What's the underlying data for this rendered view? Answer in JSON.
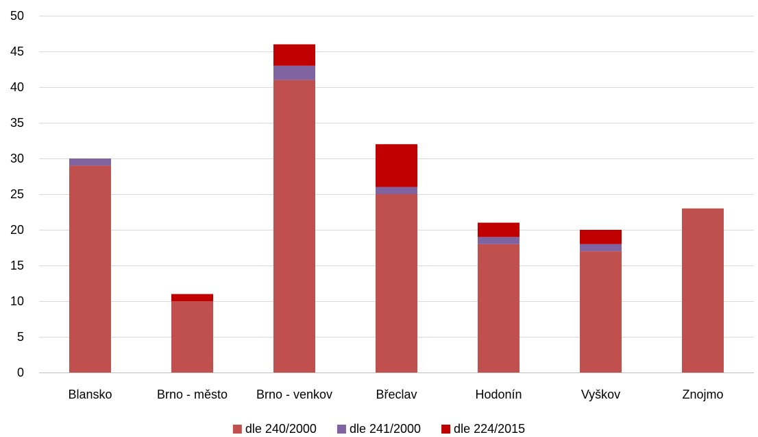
{
  "chart_data": {
    "type": "bar",
    "stacked": true,
    "categories": [
      "Blansko",
      "Brno - město",
      "Brno - venkov",
      "Břeclav",
      "Hodonín",
      "Vyškov",
      "Znojmo"
    ],
    "series": [
      {
        "name": "dle 240/2000",
        "color": "#C0504D",
        "values": [
          29,
          10,
          41,
          25,
          18,
          17,
          23
        ]
      },
      {
        "name": "dle 241/2000",
        "color": "#8064A2",
        "values": [
          1,
          0,
          2,
          1,
          1,
          1,
          0
        ]
      },
      {
        "name": "dle 224/2015",
        "color": "#C00000",
        "values": [
          0,
          1,
          3,
          6,
          2,
          2,
          0
        ]
      }
    ],
    "ylim": [
      0,
      50
    ],
    "yticks": [
      0,
      5,
      10,
      15,
      20,
      25,
      30,
      35,
      40,
      45,
      50
    ],
    "grid": true,
    "legend_position": "bottom"
  }
}
